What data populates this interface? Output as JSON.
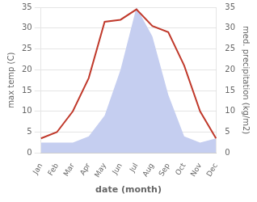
{
  "chart_data": {
    "type": "line",
    "categories": [
      "Jan",
      "Feb",
      "Mar",
      "Apr",
      "May",
      "Jun",
      "Jul",
      "Aug",
      "Sep",
      "Oct",
      "Nov",
      "Dec"
    ],
    "series": [
      {
        "type": "area",
        "color": "#c5cef0",
        "axis": "y2",
        "values": [
          2.5,
          2.5,
          2.5,
          4.0,
          9.0,
          20.0,
          35.0,
          28.0,
          14.0,
          4.0,
          2.5,
          3.5
        ]
      },
      {
        "type": "line",
        "color": "#c0392b",
        "values": [
          3.5,
          5.0,
          10.0,
          18.0,
          31.5,
          32.0,
          34.5,
          30.5,
          29.0,
          21.0,
          10.0,
          3.5
        ]
      }
    ],
    "xlabel": "date (month)",
    "ylabel": "max temp (C)",
    "y2label": "med. precipitation (kg/m2)",
    "ylim": [
      0,
      35
    ],
    "yticks": [
      0,
      5,
      10,
      15,
      20,
      25,
      30,
      35
    ],
    "y2lim": [
      0,
      35
    ],
    "y2ticks": [
      0,
      5,
      10,
      15,
      20,
      25,
      30,
      35
    ],
    "grid": "y"
  }
}
